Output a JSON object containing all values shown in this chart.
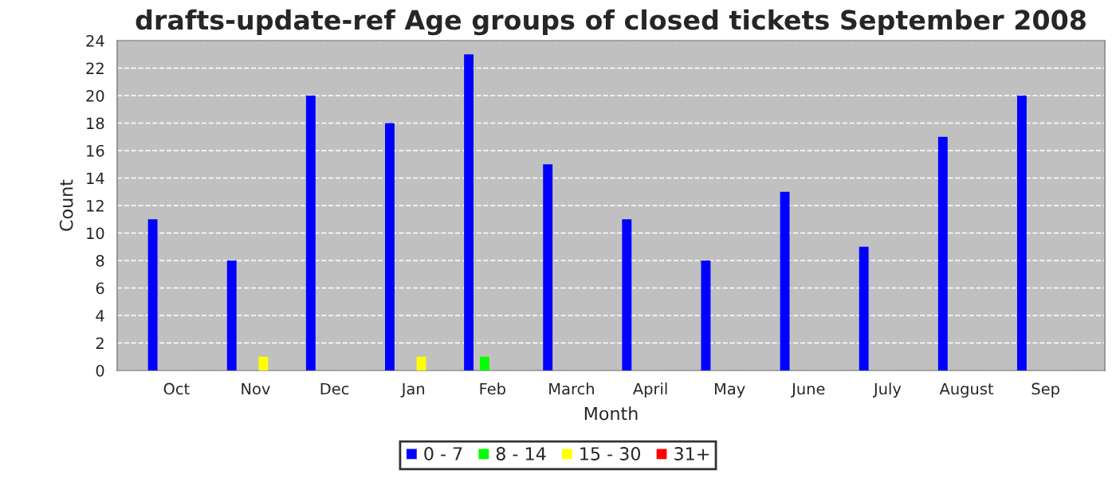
{
  "chart_data": {
    "type": "bar",
    "title": "drafts-update-ref Age groups of closed tickets September 2008",
    "xlabel": "Month",
    "ylabel": "Count",
    "categories": [
      "Oct",
      "Nov",
      "Dec",
      "Jan",
      "Feb",
      "March",
      "April",
      "May",
      "June",
      "July",
      "August",
      "Sep"
    ],
    "series": [
      {
        "name": "0 - 7",
        "color": "#0000ff",
        "values": [
          11,
          8,
          20,
          18,
          23,
          15,
          11,
          8,
          13,
          9,
          17,
          20
        ]
      },
      {
        "name": "8 - 14",
        "color": "#00ff00",
        "values": [
          0,
          0,
          0,
          0,
          1,
          0,
          0,
          0,
          0,
          0,
          0,
          0
        ]
      },
      {
        "name": "15 - 30",
        "color": "#ffff00",
        "values": [
          0,
          1,
          0,
          1,
          0,
          0,
          0,
          0,
          0,
          0,
          0,
          0
        ]
      },
      {
        "name": "31+",
        "color": "#ff0000",
        "values": [
          0,
          0,
          0,
          0,
          0,
          0,
          0,
          0,
          0,
          0,
          0,
          0
        ]
      }
    ],
    "ylim": [
      0,
      24
    ],
    "yticks": [
      0,
      2,
      4,
      6,
      8,
      10,
      12,
      14,
      16,
      18,
      20,
      22,
      24
    ],
    "grid": "y",
    "legend": "bottom"
  }
}
